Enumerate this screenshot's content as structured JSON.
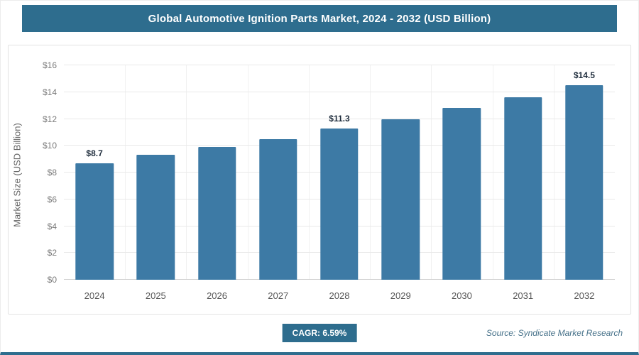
{
  "header": {
    "title": "Global Automotive Ignition Parts Market, 2024 - 2032 (USD Billion)"
  },
  "chart_data": {
    "type": "bar",
    "title": "Global Automotive Ignition Parts Market, 2024 - 2032 (USD Billion)",
    "categories": [
      "2024",
      "2025",
      "2026",
      "2027",
      "2028",
      "2029",
      "2030",
      "2031",
      "2032"
    ],
    "values": [
      8.7,
      9.3,
      9.9,
      10.5,
      11.3,
      12.0,
      12.8,
      13.6,
      14.5
    ],
    "data_labels": [
      "$8.7",
      null,
      null,
      null,
      "$11.3",
      null,
      null,
      null,
      "$14.5"
    ],
    "xlabel": "",
    "ylabel": "Market Size (USD Billion)",
    "ylim": [
      0,
      16
    ],
    "ytick_step": 2,
    "ytick_labels": [
      "$0",
      "$2",
      "$4",
      "$6",
      "$8",
      "$10",
      "$12",
      "$14",
      "$16"
    ],
    "bar_color": "#3d7aa5",
    "grid": true,
    "legend": false
  },
  "footer": {
    "cagr_label": "CAGR: 6.59%",
    "source": "Source: Syndicate Market Research"
  },
  "colors": {
    "accent": "#2e6d8e",
    "bar": "#3d7aa5"
  }
}
